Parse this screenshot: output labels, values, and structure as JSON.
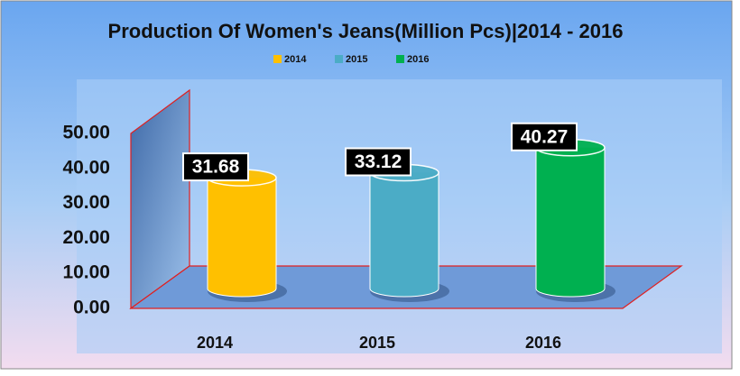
{
  "chart_data": {
    "type": "cylinder-bar",
    "title": "Production Of Women's Jeans(Million Pcs)|2014 - 2016",
    "categories": [
      "2014",
      "2015",
      "2016"
    ],
    "values": [
      31.68,
      33.12,
      40.27
    ],
    "colors": [
      "#ffc000",
      "#4bacc6",
      "#00b050"
    ],
    "ylim": [
      0,
      50
    ],
    "yticks": [
      {
        "value": 0,
        "label": "0.00"
      },
      {
        "value": 10,
        "label": "10.00"
      },
      {
        "value": 20,
        "label": "20.00"
      },
      {
        "value": 30,
        "label": "30.00"
      },
      {
        "value": 40,
        "label": "40.00"
      },
      {
        "value": 50,
        "label": "50.00"
      }
    ],
    "legend": "top"
  }
}
